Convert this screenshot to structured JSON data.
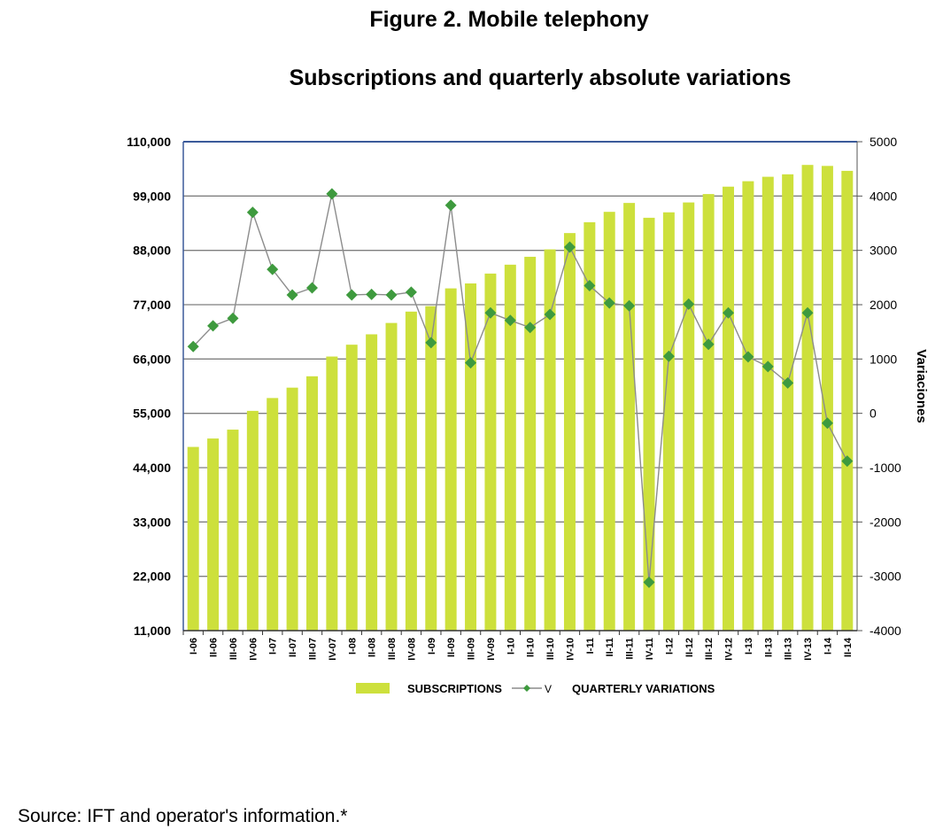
{
  "figure": {
    "title": "Figure 2. Mobile telephony",
    "subtitle": "Subscriptions and quarterly absolute variations",
    "source": "Source: IFT and operator's information.*"
  },
  "colors": {
    "bar": "#cde03c",
    "line": "#8c8c8c",
    "marker": "#3e9a3e",
    "grid": "#7f7f7f",
    "frame": "#3b5a9a"
  },
  "chart_data": {
    "type": "bar",
    "categories": [
      "I-06",
      "II-06",
      "III-06",
      "IV-06",
      "I-07",
      "II-07",
      "III-07",
      "IV-07",
      "I-08",
      "II-08",
      "III-08",
      "IV-08",
      "I-09",
      "II-09",
      "III-09",
      "IV-09",
      "I-10",
      "II-10",
      "III-10",
      "IV-10",
      "I-11",
      "II-11",
      "III-11",
      "IV-11",
      "I-12",
      "II-12",
      "III-12",
      "IV-12",
      "I-13",
      "II-13",
      "III-13",
      "IV-13",
      "I-14",
      "II-14"
    ],
    "series": [
      {
        "name": "SUBSCRIPTIONS",
        "type": "bar",
        "axis": "left",
        "values": [
          48200,
          49900,
          51700,
          55500,
          58100,
          60200,
          62500,
          66500,
          68900,
          71000,
          73300,
          75600,
          76700,
          80300,
          81300,
          83300,
          85100,
          86700,
          88200,
          91500,
          93700,
          95800,
          97600,
          94600,
          95700,
          97700,
          99400,
          100900,
          102000,
          102900,
          103400,
          105300,
          105100,
          104100
        ]
      },
      {
        "name": "QUARTERLY VARIATIONS",
        "legend_prefix": "V",
        "type": "line",
        "axis": "right",
        "values": [
          1230,
          1610,
          1750,
          3700,
          2650,
          2180,
          2310,
          4040,
          2180,
          2190,
          2180,
          2230,
          1300,
          3830,
          930,
          1850,
          1710,
          1580,
          1820,
          3060,
          2350,
          2030,
          1980,
          -3110,
          1050,
          2010,
          1270,
          1850,
          1040,
          860,
          560,
          1850,
          -180,
          -880
        ]
      }
    ],
    "ylabel_right": "Variaciones",
    "yticks_left": [
      "110,000",
      "99,000",
      "88,000",
      "77,000",
      "66,000",
      "55,000",
      "44,000",
      "33,000",
      "22,000",
      "11,000"
    ],
    "yticks_right": [
      "5000",
      "4000",
      "3000",
      "2000",
      "1000",
      "0",
      "-1000",
      "-2000",
      "-3000",
      "-4000"
    ],
    "ylim_left": [
      11000,
      110000
    ],
    "ylim_right": [
      -4000,
      5000
    ],
    "grid": true,
    "legend_placement": "bottom"
  }
}
